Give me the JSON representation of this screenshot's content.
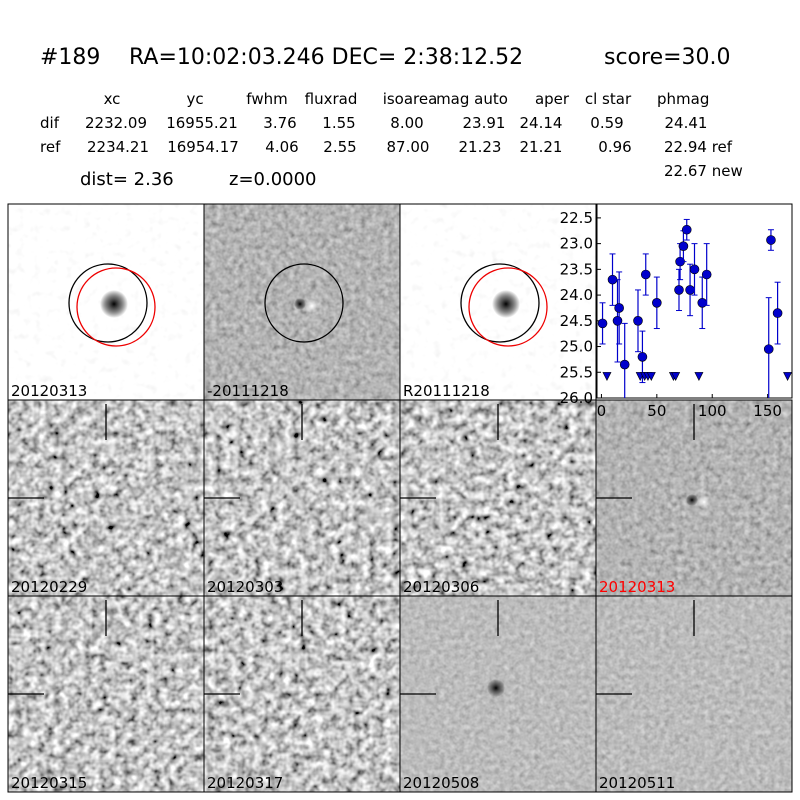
{
  "header": {
    "id": "#189",
    "coords": "RA=10:02:03.246 DEC= 2:38:12.52",
    "score": "score=30.0",
    "dist": "dist=  2.36",
    "z": "z=0.0000"
  },
  "table": {
    "columns": [
      "xc",
      "yc",
      "fwhm",
      "fluxrad",
      "isoarea",
      "mag auto",
      "aper",
      "cl star",
      "phmag"
    ],
    "rows": [
      [
        "dif",
        "2232.09",
        "16955.21",
        "3.76",
        "1.55",
        "8.00",
        "23.91",
        "24.14",
        "0.59",
        "24.41"
      ],
      [
        "ref",
        "2234.21",
        "16954.17",
        "4.06",
        "2.55",
        "87.00",
        "21.23",
        "21.21",
        "0.96",
        "22.94 ref"
      ]
    ],
    "extra": "22.67 new"
  },
  "stamps": [
    {
      "label": "20120313"
    },
    {
      "label": "-20111218"
    },
    {
      "label": "R20111218"
    },
    {
      "label": "20120229"
    },
    {
      "label": "20120303"
    },
    {
      "label": "20120306"
    },
    {
      "label": "20120313",
      "color": "#ff0000"
    },
    {
      "label": "20120315"
    },
    {
      "label": "20120317"
    },
    {
      "label": "20120508"
    },
    {
      "label": "20120511"
    }
  ],
  "chart_data": {
    "type": "scatter",
    "color": "#0000cc",
    "xlim": [
      -4,
      172
    ],
    "ylim": [
      26.0,
      22.23
    ],
    "xticks": [
      0,
      50,
      100,
      150
    ],
    "yticks": [
      22.5,
      {
        "value": 23.0,
        "label": "23.0"
      },
      23.5,
      {
        "value": 24.0,
        "label": "24.0"
      },
      24.5,
      {
        "value": 25.0,
        "label": "25.0"
      },
      25.5,
      {
        "value": 26.0,
        "label": "26.0"
      }
    ],
    "series": [
      {
        "x": [
          1,
          10,
          14.5,
          16,
          21,
          33,
          37,
          40,
          50,
          70,
          71,
          74,
          77,
          80,
          84,
          91,
          95,
          151,
          153,
          159
        ],
        "values": [
          24.55,
          23.7,
          24.5,
          24.25,
          25.35,
          24.5,
          25.2,
          23.6,
          24.15,
          23.9,
          23.35,
          23.05,
          22.73,
          23.9,
          23.5,
          24.15,
          23.6,
          25.05,
          22.93,
          24.35
        ],
        "errors": [
          0.4,
          0.5,
          0.8,
          0.7,
          0.8,
          0.6,
          0.5,
          0.4,
          0.5,
          0.4,
          0.35,
          0.3,
          0.2,
          0.5,
          0.5,
          0.5,
          0.6,
          1.0,
          0.2,
          0.6
        ]
      },
      {
        "x": [
          5,
          35,
          39,
          42,
          45,
          65,
          67,
          88,
          168
        ],
        "values": [
          25.58,
          25.58,
          25.58,
          25.58,
          25.58,
          25.58,
          25.58,
          25.58,
          25.58
        ]
      }
    ]
  }
}
